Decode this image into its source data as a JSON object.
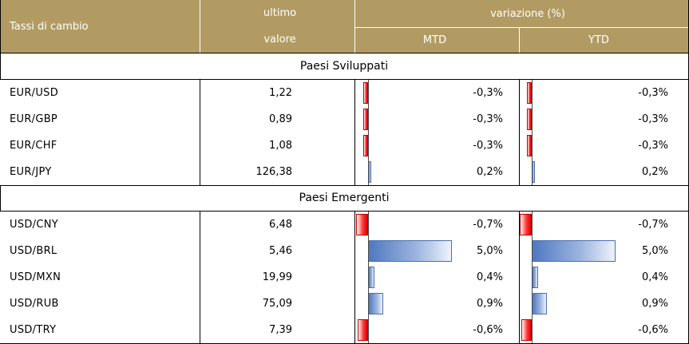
{
  "header": {
    "col1": "Tassi di cambio",
    "col2_line1": "ultimo",
    "col2_line2": "valore",
    "col3": "variazione (%)",
    "col3_sub1": "MTD",
    "col3_sub2": "YTD"
  },
  "sections": [
    {
      "title": "Paesi Sviluppati",
      "rows": [
        {
          "name": "EUR/USD",
          "value": "1,22",
          "mtd": "-0,3%",
          "ytd": "-0,3%",
          "mtd_num": -0.3,
          "ytd_num": -0.3
        },
        {
          "name": "EUR/GBP",
          "value": "0,89",
          "mtd": "-0,3%",
          "ytd": "-0,3%",
          "mtd_num": -0.3,
          "ytd_num": -0.3
        },
        {
          "name": "EUR/CHF",
          "value": "1,08",
          "mtd": "-0,3%",
          "ytd": "-0,3%",
          "mtd_num": -0.3,
          "ytd_num": -0.3
        },
        {
          "name": "EUR/JPY",
          "value": "126,38",
          "mtd": "0,2%",
          "ytd": "0,2%",
          "mtd_num": 0.2,
          "ytd_num": 0.2
        }
      ]
    },
    {
      "title": "Paesi Emergenti",
      "rows": [
        {
          "name": "USD/CNY",
          "value": "6,48",
          "mtd": "-0,7%",
          "ytd": "-0,7%",
          "mtd_num": -0.7,
          "ytd_num": -0.7
        },
        {
          "name": "USD/BRL",
          "value": "5,46",
          "mtd": "5,0%",
          "ytd": "5,0%",
          "mtd_num": 5.0,
          "ytd_num": 5.0
        },
        {
          "name": "USD/MXN",
          "value": "19,99",
          "mtd": "0,4%",
          "ytd": "0,4%",
          "mtd_num": 0.4,
          "ytd_num": 0.4
        },
        {
          "name": "USD/RUB",
          "value": "75,09",
          "mtd": "0,9%",
          "ytd": "0,9%",
          "mtd_num": 0.9,
          "ytd_num": 0.9
        },
        {
          "name": "USD/TRY",
          "value": "7,39",
          "mtd": "-0,6%",
          "ytd": "-0,6%",
          "mtd_num": -0.6,
          "ytd_num": -0.6
        }
      ]
    }
  ],
  "colors": {
    "header_bg": "#b29b63",
    "header_text": "#ffffff",
    "negative_bar": "#e00000",
    "positive_bar": "#4f78c0"
  }
}
